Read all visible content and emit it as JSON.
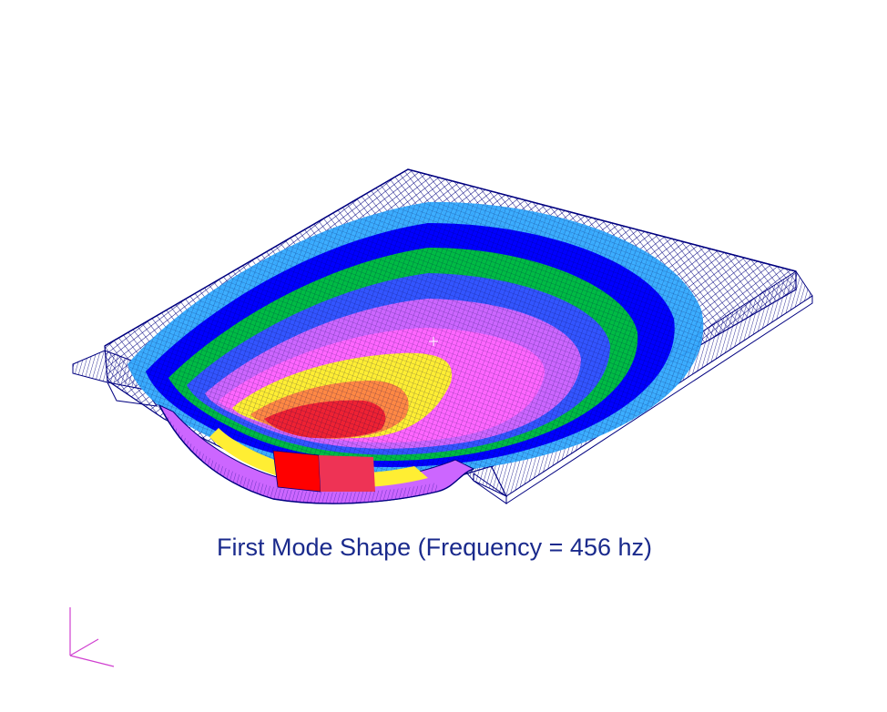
{
  "caption": "First Mode Shape (Frequency = 456 hz)",
  "colors": {
    "mesh_line": "#000080",
    "triad": "#d040d0",
    "caption": "#1a2a8c",
    "contour_bands": [
      "#33aaff",
      "#0000ff",
      "#00cc33",
      "#ff44ff",
      "#cc55ff",
      "#ffee33",
      "#ff0000"
    ]
  },
  "icons": {
    "axis_triad": "coordinate-triad-icon",
    "center_marker": "crosshair-icon"
  }
}
